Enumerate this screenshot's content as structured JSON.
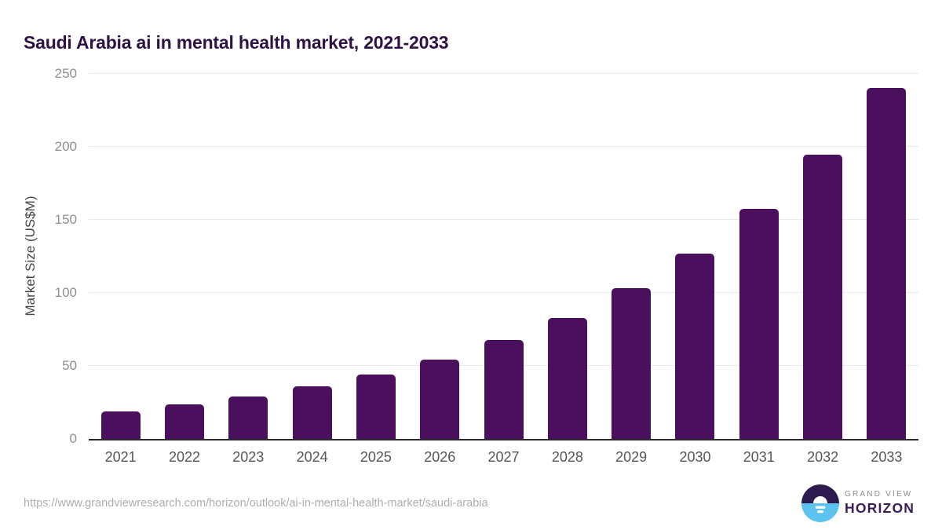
{
  "page": {
    "title": "Saudi Arabia ai in mental health market, 2021-2033",
    "source_url": "https://www.grandviewresearch.com/horizon/outlook/ai-in-mental-health-market/saudi-arabia",
    "brand": {
      "name_top": "GRAND VIEW",
      "name_bottom": "HORIZON"
    }
  },
  "chart_data": {
    "type": "bar",
    "title": "Saudi Arabia ai in mental health market, 2021-2033",
    "categories": [
      "2021",
      "2022",
      "2023",
      "2024",
      "2025",
      "2026",
      "2027",
      "2028",
      "2029",
      "2030",
      "2031",
      "2032",
      "2033"
    ],
    "values": [
      19,
      23.5,
      29,
      36,
      44,
      54.5,
      67.5,
      83,
      103,
      127,
      157.5,
      194.5,
      240.5
    ],
    "xlabel": "",
    "ylabel": "Market Size (US$M)",
    "ylim": [
      0,
      250
    ],
    "yticks": [
      0,
      50,
      100,
      150,
      200,
      250
    ],
    "grid": "horizontal",
    "legend": false,
    "bar_color": "#4a105e"
  },
  "colors": {
    "bar": "#4a105e",
    "title": "#2e1145",
    "axis_title": "#454545",
    "y_tick": "#8e8e8e",
    "x_tick": "#565656",
    "gridline": "#e9e9e9",
    "baseline": "#2b2b2b",
    "url_text": "#aeaeae",
    "logo_dark": "#2d1a4e",
    "logo_blue": "#5cc3ef",
    "logo_text_top": "#8b8b8b",
    "logo_text_bottom": "#3a1c55"
  }
}
